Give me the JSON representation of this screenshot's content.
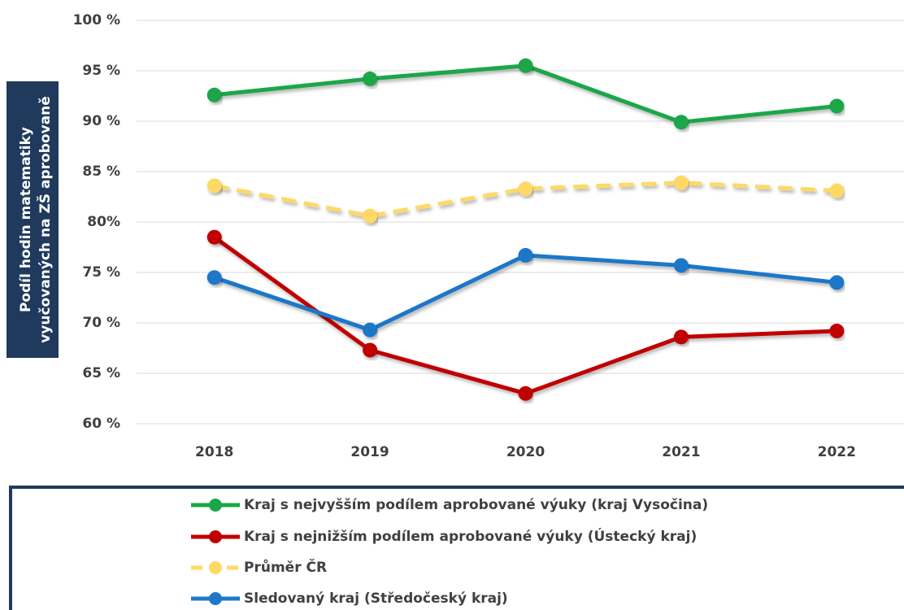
{
  "chart_data": {
    "type": "line",
    "ylabel": [
      "Podíl hodin matematiky",
      "vyučovaných na ZŠ aprobovaně"
    ],
    "categories": [
      "2018",
      "2019",
      "2020",
      "2021",
      "2022"
    ],
    "series": [
      {
        "name": "Kraj s nejvyšším podílem aprobované výuky (kraj Vysočina)",
        "color": "#1aa64a",
        "dashed": false,
        "values": [
          92.6,
          94.2,
          95.5,
          89.9,
          91.5
        ]
      },
      {
        "name": "Kraj s nejnižším podílem aprobované výuky (Ústecký kraj)",
        "color": "#c00000",
        "dashed": false,
        "values": [
          78.5,
          67.3,
          63.0,
          68.6,
          69.2
        ]
      },
      {
        "name": "Průměr ČR",
        "color": "#ffd966",
        "dashed": true,
        "values": [
          83.6,
          80.6,
          83.3,
          83.9,
          83.1
        ]
      },
      {
        "name": "Sledovaný kraj (Středočeský kraj)",
        "color": "#1f77c8",
        "dashed": false,
        "values": [
          74.5,
          69.3,
          76.7,
          75.7,
          74.0
        ]
      }
    ],
    "ylim": [
      60,
      100
    ],
    "yticks": [
      {
        "value": 60,
        "label": "60 %"
      },
      {
        "value": 65,
        "label": "65 %"
      },
      {
        "value": 70,
        "label": "70 %"
      },
      {
        "value": 75,
        "label": "75 %"
      },
      {
        "value": 80,
        "label": "80%"
      },
      {
        "value": 85,
        "label": "85 %"
      },
      {
        "value": 90,
        "label": "90 %"
      },
      {
        "value": 95,
        "label": "95 %"
      },
      {
        "value": 100,
        "label": "100 %"
      }
    ],
    "grid": true
  }
}
